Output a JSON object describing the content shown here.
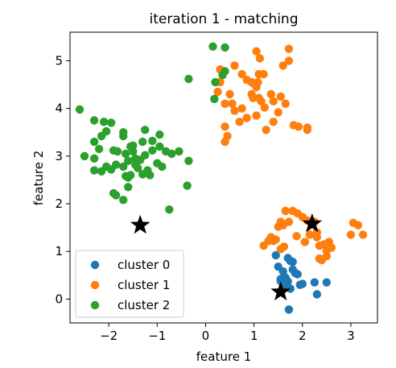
{
  "chart_data": {
    "type": "scatter",
    "title": "iteration 1 - matching",
    "xlabel": "feature 1",
    "ylabel": "feature 2",
    "xlim": [
      -2.8,
      3.55
    ],
    "ylim": [
      -0.5,
      5.6
    ],
    "xticks": [
      -2,
      -1,
      0,
      1,
      2,
      3
    ],
    "yticks": [
      0,
      1,
      2,
      3,
      4,
      5
    ],
    "grid": false,
    "legend_position": "lower-left",
    "series": [
      {
        "name": "cluster 0",
        "color": "#1f77b4",
        "points": [
          [
            1.45,
            0.92
          ],
          [
            1.5,
            0.68
          ],
          [
            1.6,
            0.58
          ],
          [
            1.7,
            0.86
          ],
          [
            1.75,
            0.8
          ],
          [
            1.8,
            0.78
          ],
          [
            1.85,
            0.55
          ],
          [
            1.9,
            0.52
          ],
          [
            1.65,
            0.45
          ],
          [
            1.7,
            0.37
          ],
          [
            1.55,
            0.38
          ],
          [
            1.6,
            0.3
          ],
          [
            1.75,
            0.22
          ],
          [
            1.95,
            0.3
          ],
          [
            2.0,
            0.32
          ],
          [
            2.25,
            0.35
          ],
          [
            2.3,
            0.1
          ],
          [
            2.5,
            0.35
          ],
          [
            1.8,
            0.62
          ],
          [
            1.72,
            -0.22
          ],
          [
            1.62,
            0.3
          ],
          [
            1.55,
            0.42
          ]
        ]
      },
      {
        "name": "cluster 1",
        "color": "#ff7f0e",
        "points": [
          [
            0.3,
            4.82
          ],
          [
            0.75,
            4.72
          ],
          [
            0.85,
            4.6
          ],
          [
            0.95,
            4.55
          ],
          [
            1.05,
            5.2
          ],
          [
            1.12,
            5.05
          ],
          [
            1.1,
            4.72
          ],
          [
            1.2,
            4.72
          ],
          [
            1.05,
            4.45
          ],
          [
            1.0,
            4.52
          ],
          [
            1.08,
            4.55
          ],
          [
            0.95,
            4.3
          ],
          [
            0.98,
            4.22
          ],
          [
            1.1,
            4.22
          ],
          [
            1.15,
            4.15
          ],
          [
            1.22,
            4.02
          ],
          [
            1.35,
            4.3
          ],
          [
            1.4,
            4.15
          ],
          [
            1.55,
            4.25
          ],
          [
            1.6,
            4.9
          ],
          [
            1.72,
            5.0
          ],
          [
            1.72,
            5.25
          ],
          [
            0.5,
            4.3
          ],
          [
            0.4,
            4.1
          ],
          [
            0.55,
            4.1
          ],
          [
            0.6,
            3.95
          ],
          [
            0.75,
            4.0
          ],
          [
            0.85,
            3.8
          ],
          [
            1.05,
            3.85
          ],
          [
            1.5,
            3.92
          ],
          [
            1.65,
            4.1
          ],
          [
            0.4,
            3.62
          ],
          [
            0.45,
            3.42
          ],
          [
            0.4,
            3.3
          ],
          [
            0.7,
            3.72
          ],
          [
            1.25,
            3.55
          ],
          [
            1.4,
            3.72
          ],
          [
            1.82,
            3.65
          ],
          [
            1.92,
            3.62
          ],
          [
            2.1,
            3.6
          ],
          [
            2.1,
            3.55
          ],
          [
            0.6,
            4.9
          ],
          [
            0.3,
            4.55
          ],
          [
            0.25,
            4.35
          ],
          [
            1.2,
            1.12
          ],
          [
            1.35,
            1.3
          ],
          [
            1.4,
            1.22
          ],
          [
            1.5,
            1.52
          ],
          [
            1.55,
            1.62
          ],
          [
            1.6,
            1.55
          ],
          [
            1.65,
            1.85
          ],
          [
            1.72,
            1.62
          ],
          [
            1.8,
            1.85
          ],
          [
            1.9,
            1.8
          ],
          [
            2.0,
            1.72
          ],
          [
            2.1,
            1.65
          ],
          [
            2.25,
            1.62
          ],
          [
            2.15,
            1.35
          ],
          [
            2.3,
            1.3
          ],
          [
            2.35,
            1.12
          ],
          [
            2.45,
            1.15
          ],
          [
            2.5,
            1.02
          ],
          [
            2.55,
            1.2
          ],
          [
            2.6,
            1.08
          ],
          [
            2.35,
            0.85
          ],
          [
            2.4,
            0.82
          ],
          [
            2.5,
            0.9
          ],
          [
            2.05,
            1.2
          ],
          [
            1.88,
            1.32
          ],
          [
            1.55,
            1.05
          ],
          [
            1.45,
            1.25
          ],
          [
            1.3,
            1.22
          ],
          [
            3.0,
            1.35
          ],
          [
            3.05,
            1.6
          ],
          [
            3.15,
            1.55
          ],
          [
            3.25,
            1.35
          ],
          [
            1.62,
            1.1
          ],
          [
            2.3,
            1.4
          ]
        ]
      },
      {
        "name": "cluster 2",
        "color": "#2ca02c",
        "points": [
          [
            0.15,
            5.3
          ],
          [
            0.4,
            5.28
          ],
          [
            0.4,
            4.78
          ],
          [
            0.35,
            4.7
          ],
          [
            0.2,
            4.55
          ],
          [
            0.18,
            4.2
          ],
          [
            -0.35,
            4.62
          ],
          [
            -2.6,
            3.98
          ],
          [
            -2.3,
            3.75
          ],
          [
            -2.1,
            3.72
          ],
          [
            -2.05,
            3.52
          ],
          [
            -2.15,
            3.42
          ],
          [
            -1.95,
            3.7
          ],
          [
            -1.7,
            3.5
          ],
          [
            -1.7,
            3.42
          ],
          [
            -1.5,
            3.22
          ],
          [
            -1.3,
            3.3
          ],
          [
            -1.1,
            3.32
          ],
          [
            -1.25,
            3.55
          ],
          [
            -0.95,
            3.45
          ],
          [
            -2.3,
            3.3
          ],
          [
            -2.2,
            3.15
          ],
          [
            -2.5,
            3.0
          ],
          [
            -2.3,
            2.95
          ],
          [
            -1.9,
            3.12
          ],
          [
            -1.82,
            3.1
          ],
          [
            -1.65,
            3.05
          ],
          [
            -1.5,
            3.1
          ],
          [
            -1.45,
            2.95
          ],
          [
            -1.35,
            2.92
          ],
          [
            -1.25,
            3.02
          ],
          [
            -1.1,
            3.12
          ],
          [
            -0.82,
            3.1
          ],
          [
            -0.7,
            3.05
          ],
          [
            -2.3,
            2.7
          ],
          [
            -2.15,
            2.68
          ],
          [
            -2.05,
            2.78
          ],
          [
            -1.95,
            2.72
          ],
          [
            -1.85,
            2.82
          ],
          [
            -1.7,
            2.78
          ],
          [
            -1.65,
            2.58
          ],
          [
            -1.55,
            2.6
          ],
          [
            -1.45,
            2.82
          ],
          [
            -1.3,
            2.62
          ],
          [
            -1.2,
            2.7
          ],
          [
            -1.15,
            2.6
          ],
          [
            -1.0,
            2.85
          ],
          [
            -0.9,
            2.78
          ],
          [
            -0.35,
            2.9
          ],
          [
            -0.55,
            3.1
          ],
          [
            -0.95,
            3.2
          ],
          [
            -1.4,
            2.75
          ],
          [
            -1.6,
            2.9
          ],
          [
            -0.38,
            2.38
          ],
          [
            -1.6,
            2.35
          ],
          [
            -1.9,
            2.22
          ],
          [
            -1.85,
            2.18
          ],
          [
            -1.7,
            2.08
          ],
          [
            -0.75,
            1.88
          ],
          [
            -1.55,
            3.2
          ],
          [
            -1.6,
            2.55
          ]
        ]
      }
    ],
    "centroids": {
      "marker": "star",
      "color": "#000000",
      "points": [
        [
          -1.35,
          1.55
        ],
        [
          2.2,
          1.58
        ],
        [
          1.55,
          0.15
        ]
      ]
    }
  }
}
